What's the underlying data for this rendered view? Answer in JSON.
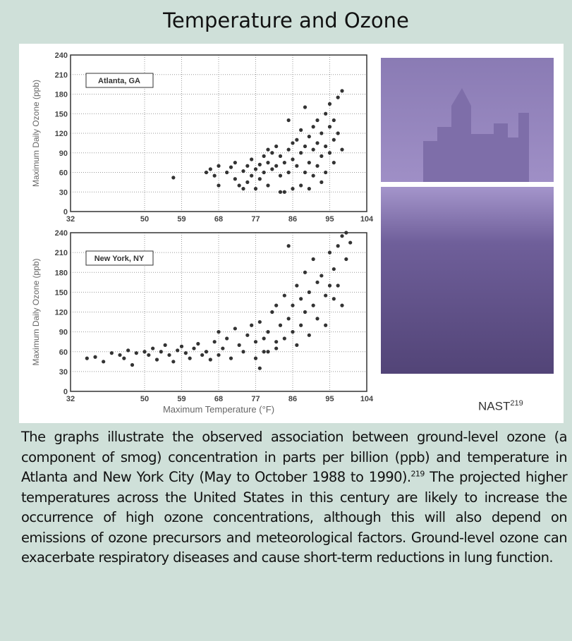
{
  "title": "Temperature and Ozone",
  "credit": "NAST",
  "credit_ref": "219",
  "caption_before": "The graphs illustrate the observed association between ground-level ozone (a component of smog) concentration in parts per billion (ppb) and temperature in Atlanta and New York City (May to October 1988 to 1990).",
  "caption_ref": "219",
  "caption_after": " The projected higher temperatures across the United States in this century are likely to increase the occurrence of high ozone concentrations, although this will also depend on emissions of ozone precursors and meteorological factors. Ground-level ozone can exacerbate respiratory diseases and cause short-term reductions in lung function.",
  "chart_data": [
    {
      "type": "scatter",
      "annotation": "Atlanta, GA",
      "y_label": "Maximum Daily Ozone (ppb)",
      "color": "#333333",
      "grid": true,
      "xlim": [
        32,
        104
      ],
      "xticks": [
        32,
        50,
        59,
        68,
        77,
        86,
        95,
        104
      ],
      "ylim": [
        0,
        240
      ],
      "yticks": [
        0,
        30,
        60,
        90,
        120,
        150,
        180,
        210,
        240
      ],
      "x": [
        57,
        65,
        66,
        67,
        68,
        68,
        70,
        71,
        72,
        72,
        73,
        74,
        74,
        75,
        75,
        76,
        76,
        77,
        77,
        78,
        78,
        79,
        79,
        80,
        80,
        81,
        81,
        82,
        82,
        83,
        83,
        84,
        84,
        85,
        85,
        86,
        86,
        86,
        87,
        87,
        88,
        88,
        88,
        89,
        89,
        89,
        90,
        90,
        90,
        91,
        91,
        91,
        92,
        92,
        92,
        93,
        93,
        93,
        94,
        94,
        94,
        95,
        95,
        95,
        96,
        96,
        96,
        97,
        97,
        98,
        98,
        85,
        83,
        80
      ],
      "y": [
        52,
        60,
        65,
        55,
        40,
        70,
        60,
        68,
        50,
        75,
        40,
        62,
        35,
        70,
        45,
        55,
        80,
        35,
        65,
        72,
        50,
        85,
        60,
        75,
        40,
        90,
        65,
        70,
        100,
        55,
        85,
        30,
        75,
        95,
        60,
        105,
        35,
        80,
        110,
        70,
        90,
        40,
        125,
        100,
        60,
        160,
        115,
        75,
        35,
        130,
        95,
        55,
        105,
        140,
        70,
        85,
        120,
        45,
        150,
        100,
        60,
        130,
        90,
        165,
        110,
        140,
        75,
        175,
        120,
        185,
        95,
        140,
        30,
        95
      ]
    },
    {
      "type": "scatter",
      "annotation": "New York, NY",
      "y_label": "Maximum Daily Ozone (ppb)",
      "x_label": "Maximum Temperature (°F)",
      "color": "#333333",
      "grid": true,
      "xlim": [
        32,
        104
      ],
      "xticks": [
        32,
        50,
        59,
        68,
        77,
        86,
        95,
        104
      ],
      "ylim": [
        0,
        240
      ],
      "yticks": [
        0,
        30,
        60,
        90,
        120,
        150,
        180,
        210,
        240
      ],
      "x": [
        36,
        38,
        40,
        42,
        44,
        45,
        46,
        47,
        48,
        50,
        51,
        52,
        53,
        54,
        55,
        56,
        57,
        58,
        59,
        60,
        61,
        62,
        63,
        64,
        65,
        66,
        67,
        68,
        68,
        69,
        70,
        71,
        72,
        73,
        74,
        75,
        76,
        77,
        77,
        78,
        78,
        79,
        80,
        80,
        81,
        82,
        82,
        83,
        84,
        84,
        85,
        85,
        86,
        86,
        87,
        87,
        88,
        88,
        89,
        89,
        90,
        90,
        91,
        91,
        92,
        92,
        93,
        94,
        94,
        95,
        95,
        96,
        96,
        97,
        97,
        98,
        98,
        99,
        99,
        100,
        82,
        79
      ],
      "y": [
        50,
        52,
        45,
        58,
        55,
        50,
        62,
        40,
        58,
        60,
        55,
        65,
        48,
        60,
        70,
        55,
        45,
        62,
        68,
        58,
        50,
        65,
        72,
        55,
        60,
        48,
        75,
        90,
        55,
        65,
        80,
        50,
        95,
        70,
        60,
        85,
        100,
        50,
        75,
        105,
        35,
        80,
        90,
        60,
        120,
        130,
        75,
        100,
        145,
        80,
        110,
        220,
        130,
        90,
        160,
        70,
        140,
        100,
        180,
        120,
        150,
        85,
        200,
        130,
        165,
        110,
        175,
        145,
        100,
        210,
        160,
        140,
        185,
        220,
        160,
        235,
        130,
        200,
        240,
        225,
        65,
        60
      ]
    }
  ]
}
